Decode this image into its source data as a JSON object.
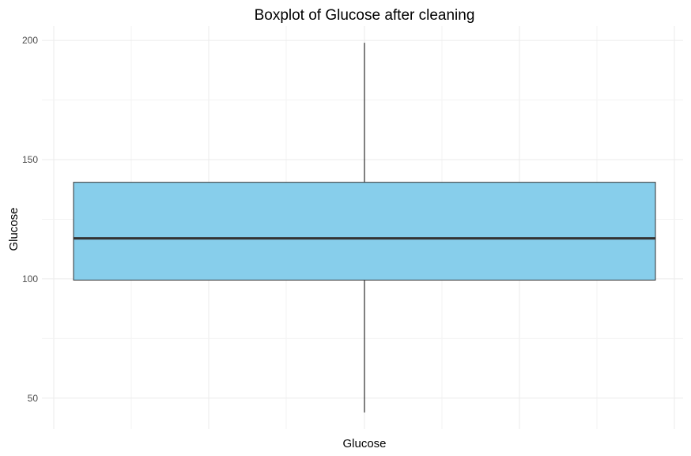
{
  "chart_data": {
    "type": "boxplot",
    "title": "Boxplot of Glucose after cleaning",
    "xlabel": "Glucose",
    "ylabel": "Glucose",
    "ylim": [
      37,
      206
    ],
    "yticks": [
      50,
      100,
      150,
      200
    ],
    "grid": true,
    "legend": "none",
    "series": [
      {
        "min": 44,
        "q1": 99.5,
        "median": 117,
        "q3": 140.5,
        "max": 199
      }
    ],
    "colors": {
      "box_fill": "#87CEEB",
      "box_stroke": "#333333",
      "median": "#333333",
      "whisker": "#000000",
      "grid_major": "#ebebeb",
      "grid_minor": "#f3f3f3"
    }
  }
}
